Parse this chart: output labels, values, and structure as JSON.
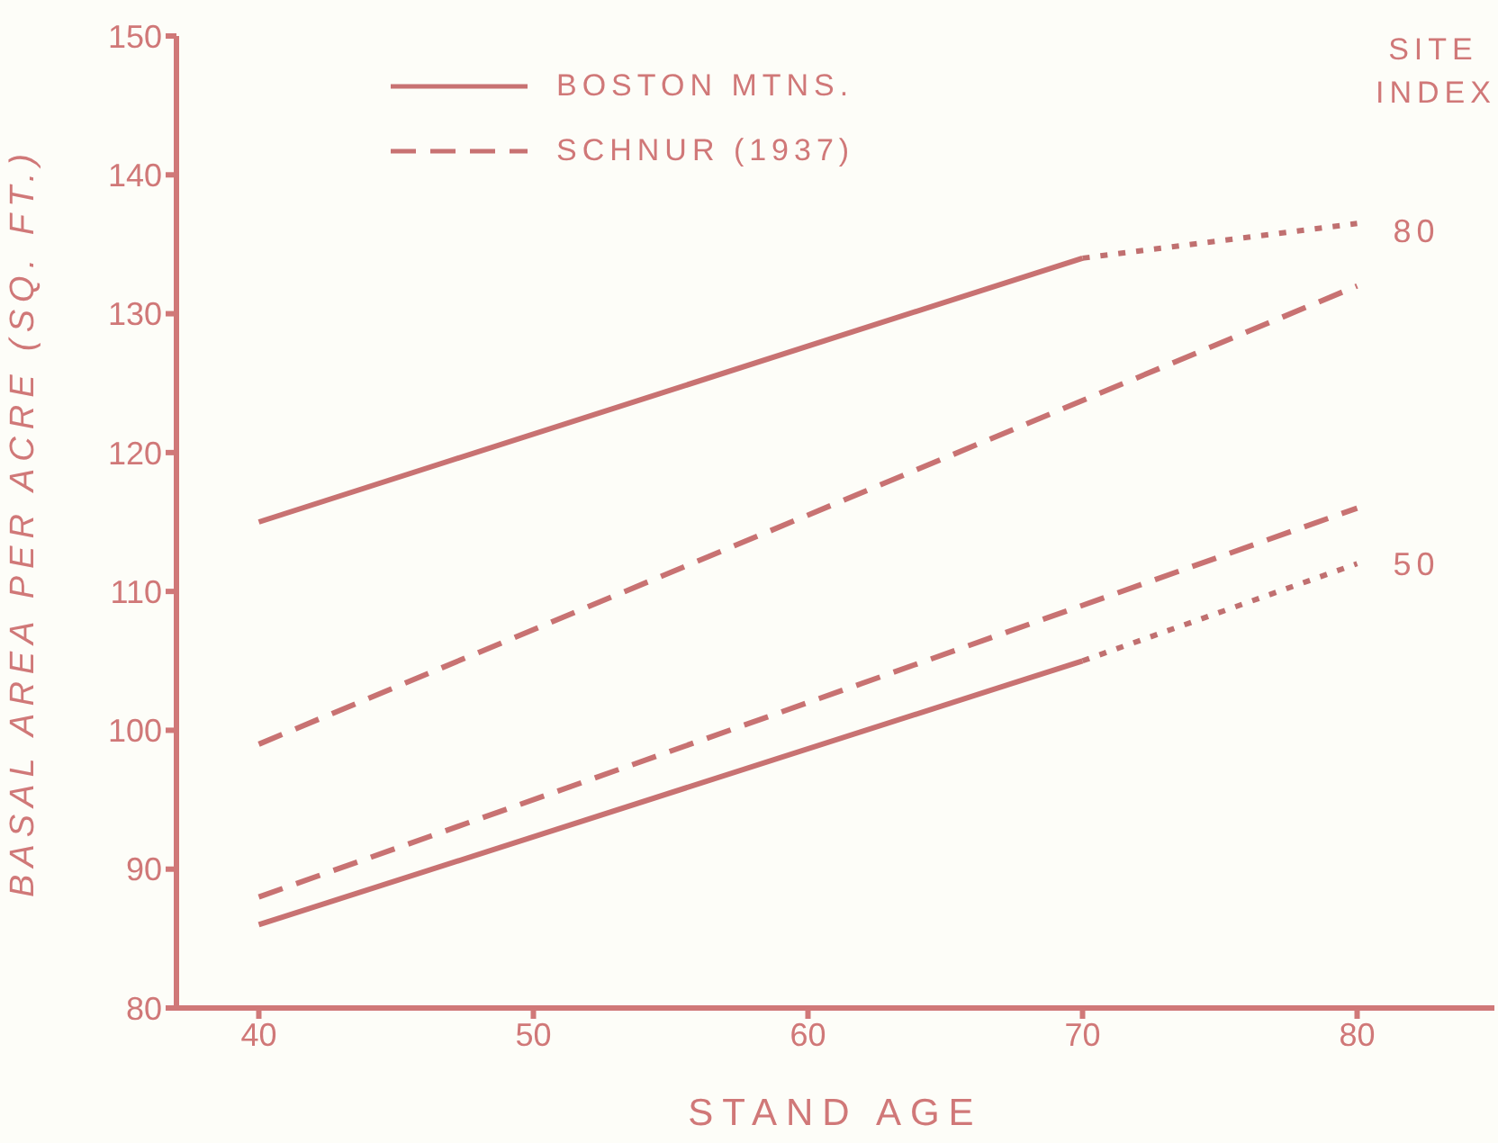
{
  "chart_data": {
    "type": "line",
    "xlabel": "STAND AGE",
    "ylabel": "BASAL AREA PER ACRE (SQ. FT.)",
    "xlim": [
      37,
      85
    ],
    "ylim": [
      80,
      150
    ],
    "xticks": [
      40,
      50,
      60,
      70,
      80
    ],
    "yticks": [
      80,
      90,
      100,
      110,
      120,
      130,
      140,
      150
    ],
    "grid": false,
    "legend": "top left",
    "marker": "none",
    "annotations": [
      "SITE INDEX",
      {
        "text": "80",
        "x": 80,
        "y": 136
      },
      {
        "text": "50",
        "x": 80,
        "y": 112
      }
    ],
    "series": [
      {
        "name": "BOSTON MTNS.",
        "color": "#c87272",
        "line_style": "solid",
        "x": [
          40,
          70
        ],
        "values": [
          115,
          134
        ]
      },
      {
        "color": "#c07070",
        "line_style": "dotted",
        "x": [
          70,
          80
        ],
        "values": [
          134,
          136.5
        ]
      },
      {
        "name": "SCHNUR (1937)",
        "color": "#c87272",
        "line_style": "dashed",
        "x": [
          40,
          80
        ],
        "values": [
          99,
          132
        ]
      },
      {
        "color": "#c87272",
        "line_style": "dashed",
        "x": [
          40,
          80
        ],
        "values": [
          88,
          116
        ]
      },
      {
        "color": "#c87272",
        "line_style": "solid",
        "x": [
          40,
          70
        ],
        "values": [
          86,
          105
        ]
      },
      {
        "color": "#c07070",
        "line_style": "dotted",
        "x": [
          70,
          80
        ],
        "values": [
          105,
          112
        ]
      }
    ]
  }
}
